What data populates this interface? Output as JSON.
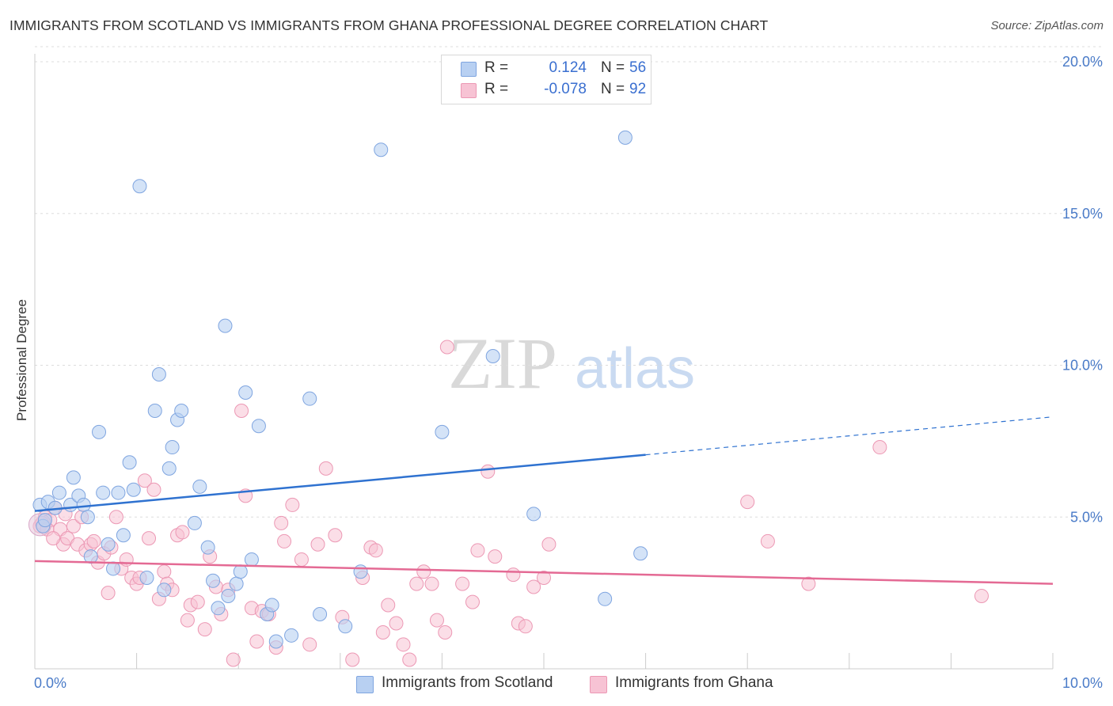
{
  "header": {
    "title": "IMMIGRANTS FROM SCOTLAND VS IMMIGRANTS FROM GHANA PROFESSIONAL DEGREE CORRELATION CHART",
    "source": "Source: ZipAtlas.com"
  },
  "watermark": {
    "zip": "ZIP",
    "atlas": "atlas"
  },
  "legend": {
    "rows": [
      {
        "r_label": "R =",
        "r_value": "0.124",
        "n_label": "N =",
        "n_value": "56"
      },
      {
        "r_label": "R =",
        "r_value": "-0.078",
        "n_label": "N =",
        "n_value": "92"
      }
    ]
  },
  "bottom_legend": {
    "scotland": "Immigrants from Scotland",
    "ghana": "Immigrants from Ghana"
  },
  "colors": {
    "scotland_fill": "#b8d0f2",
    "scotland_stroke": "#7fa5e0",
    "scotland_line": "#2f72d0",
    "ghana_fill": "#f7c3d4",
    "ghana_stroke": "#ec98b4",
    "ghana_line": "#e46a94"
  },
  "chart_data": {
    "type": "scatter",
    "title": "IMMIGRANTS FROM SCOTLAND VS IMMIGRANTS FROM GHANA PROFESSIONAL DEGREE CORRELATION CHART",
    "xlabel": "",
    "ylabel": "Professional Degree",
    "xlim": [
      0,
      10
    ],
    "ylim": [
      0,
      20
    ],
    "x_ticks": [
      "0.0%",
      "10.0%"
    ],
    "y_ticks": [
      {
        "value": 5,
        "label": "5.0%"
      },
      {
        "value": 10,
        "label": "10.0%"
      },
      {
        "value": 15,
        "label": "15.0%"
      },
      {
        "value": 20,
        "label": "20.0%"
      }
    ],
    "grid": true,
    "legend_position": "top-center",
    "series": [
      {
        "name": "Immigrants from Scotland",
        "R": 0.124,
        "N": 56,
        "trend": {
          "x0": 0,
          "y0": 5.2,
          "x1": 6.0,
          "y1": 7.05,
          "x_dash_end": 10.0,
          "y_dash_end": 8.3
        },
        "points": [
          [
            0.05,
            5.4
          ],
          [
            0.13,
            5.5
          ],
          [
            0.2,
            5.3
          ],
          [
            0.24,
            5.8
          ],
          [
            0.35,
            5.4
          ],
          [
            0.38,
            6.3
          ],
          [
            0.43,
            5.7
          ],
          [
            0.48,
            5.4
          ],
          [
            0.52,
            5.0
          ],
          [
            0.55,
            3.7
          ],
          [
            0.63,
            7.8
          ],
          [
            0.67,
            5.8
          ],
          [
            0.72,
            4.1
          ],
          [
            0.77,
            3.3
          ],
          [
            0.82,
            5.8
          ],
          [
            0.87,
            4.4
          ],
          [
            0.93,
            6.8
          ],
          [
            0.97,
            5.9
          ],
          [
            1.03,
            15.9
          ],
          [
            1.1,
            3.0
          ],
          [
            1.18,
            8.5
          ],
          [
            1.22,
            9.7
          ],
          [
            1.27,
            2.6
          ],
          [
            1.32,
            6.6
          ],
          [
            1.35,
            7.3
          ],
          [
            1.4,
            8.2
          ],
          [
            1.44,
            8.5
          ],
          [
            1.57,
            4.8
          ],
          [
            1.62,
            6.0
          ],
          [
            1.7,
            4.0
          ],
          [
            1.75,
            2.9
          ],
          [
            1.8,
            2.0
          ],
          [
            1.87,
            11.3
          ],
          [
            1.9,
            2.4
          ],
          [
            1.98,
            2.8
          ],
          [
            2.02,
            3.2
          ],
          [
            2.07,
            9.1
          ],
          [
            2.13,
            3.6
          ],
          [
            2.2,
            8.0
          ],
          [
            2.28,
            1.8
          ],
          [
            2.33,
            2.1
          ],
          [
            2.37,
            0.9
          ],
          [
            2.52,
            1.1
          ],
          [
            2.7,
            8.9
          ],
          [
            2.8,
            1.8
          ],
          [
            3.05,
            1.4
          ],
          [
            3.2,
            3.2
          ],
          [
            3.4,
            17.1
          ],
          [
            4.0,
            7.8
          ],
          [
            4.5,
            10.3
          ],
          [
            4.9,
            5.1
          ],
          [
            5.6,
            2.3
          ],
          [
            5.8,
            17.5
          ],
          [
            5.95,
            3.8
          ],
          [
            0.08,
            4.7
          ],
          [
            0.1,
            4.9
          ]
        ]
      },
      {
        "name": "Immigrants from Ghana",
        "R": -0.078,
        "N": 92,
        "trend": {
          "x0": 0,
          "y0": 3.55,
          "x1": 10.0,
          "y1": 2.8
        },
        "points": [
          [
            0.05,
            4.7
          ],
          [
            0.1,
            5.0
          ],
          [
            0.15,
            4.9
          ],
          [
            0.2,
            5.3
          ],
          [
            0.25,
            4.6
          ],
          [
            0.28,
            4.1
          ],
          [
            0.32,
            4.3
          ],
          [
            0.38,
            4.7
          ],
          [
            0.42,
            4.1
          ],
          [
            0.46,
            5.0
          ],
          [
            0.5,
            3.9
          ],
          [
            0.55,
            4.1
          ],
          [
            0.58,
            4.2
          ],
          [
            0.62,
            3.5
          ],
          [
            0.68,
            3.8
          ],
          [
            0.72,
            2.5
          ],
          [
            0.75,
            4.0
          ],
          [
            0.8,
            5.0
          ],
          [
            0.85,
            3.3
          ],
          [
            0.9,
            3.6
          ],
          [
            0.95,
            3.0
          ],
          [
            1.0,
            2.8
          ],
          [
            1.03,
            3.0
          ],
          [
            1.08,
            6.2
          ],
          [
            1.12,
            4.3
          ],
          [
            1.17,
            5.9
          ],
          [
            1.22,
            2.3
          ],
          [
            1.27,
            3.2
          ],
          [
            1.3,
            2.8
          ],
          [
            1.35,
            2.6
          ],
          [
            1.4,
            4.4
          ],
          [
            1.45,
            4.5
          ],
          [
            1.5,
            1.6
          ],
          [
            1.53,
            2.1
          ],
          [
            1.6,
            2.2
          ],
          [
            1.67,
            1.3
          ],
          [
            1.72,
            3.7
          ],
          [
            1.78,
            2.7
          ],
          [
            1.83,
            1.8
          ],
          [
            1.9,
            2.6
          ],
          [
            1.95,
            0.3
          ],
          [
            2.03,
            8.5
          ],
          [
            2.07,
            5.7
          ],
          [
            2.13,
            2.0
          ],
          [
            2.18,
            0.9
          ],
          [
            2.23,
            1.9
          ],
          [
            2.3,
            1.8
          ],
          [
            2.37,
            0.7
          ],
          [
            2.42,
            4.8
          ],
          [
            2.45,
            4.2
          ],
          [
            2.53,
            5.4
          ],
          [
            2.62,
            3.6
          ],
          [
            2.7,
            0.8
          ],
          [
            2.78,
            4.1
          ],
          [
            2.86,
            6.6
          ],
          [
            2.95,
            4.4
          ],
          [
            3.02,
            1.7
          ],
          [
            3.12,
            0.3
          ],
          [
            3.22,
            3.0
          ],
          [
            3.3,
            4.0
          ],
          [
            3.35,
            3.9
          ],
          [
            3.42,
            1.2
          ],
          [
            3.47,
            2.1
          ],
          [
            3.55,
            1.5
          ],
          [
            3.62,
            0.8
          ],
          [
            3.68,
            0.3
          ],
          [
            3.75,
            2.8
          ],
          [
            3.82,
            3.2
          ],
          [
            3.9,
            2.8
          ],
          [
            3.95,
            1.6
          ],
          [
            4.03,
            1.2
          ],
          [
            4.05,
            10.6
          ],
          [
            4.2,
            2.8
          ],
          [
            4.3,
            2.2
          ],
          [
            4.35,
            3.9
          ],
          [
            4.45,
            6.5
          ],
          [
            4.52,
            3.7
          ],
          [
            4.7,
            3.1
          ],
          [
            4.75,
            1.5
          ],
          [
            4.82,
            1.4
          ],
          [
            4.9,
            2.7
          ],
          [
            5.0,
            3.0
          ],
          [
            5.05,
            4.1
          ],
          [
            7.0,
            5.5
          ],
          [
            7.2,
            4.2
          ],
          [
            7.6,
            2.8
          ],
          [
            8.3,
            7.3
          ],
          [
            9.3,
            2.4
          ],
          [
            0.07,
            4.8
          ],
          [
            0.12,
            4.6
          ],
          [
            0.18,
            4.3
          ],
          [
            0.3,
            5.1
          ]
        ]
      }
    ]
  }
}
